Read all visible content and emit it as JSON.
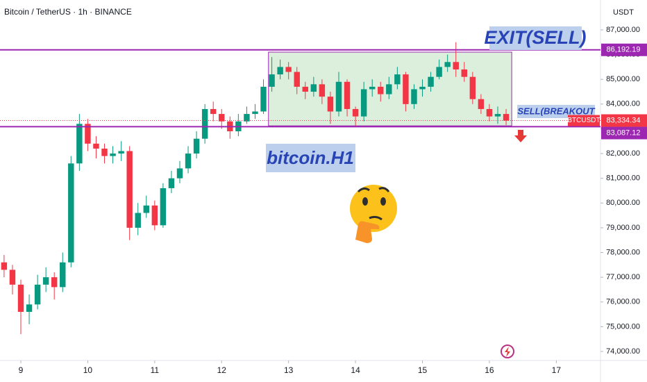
{
  "chart_data": {
    "type": "candlestick",
    "title": "Bitcoin / TetherUS · 1h · BINANCE",
    "y_axis_label": "USDT",
    "x": [
      8.75,
      8.875,
      9,
      9.125,
      9.25,
      9.375,
      9.5,
      9.625,
      9.75,
      9.875,
      10,
      10.125,
      10.25,
      10.375,
      10.5,
      10.625,
      10.75,
      10.875,
      11,
      11.125,
      11.25,
      11.375,
      11.5,
      11.625,
      11.75,
      11.875,
      12,
      12.125,
      12.25,
      12.375,
      12.5,
      12.625,
      12.75,
      12.875,
      13,
      13.125,
      13.25,
      13.375,
      13.5,
      13.625,
      13.75,
      13.875,
      14,
      14.125,
      14.25,
      14.375,
      14.5,
      14.625,
      14.75,
      14.875,
      15,
      15.125,
      15.25,
      15.375,
      15.5,
      15.625,
      15.75,
      15.875,
      16,
      16.125,
      16.25
    ],
    "open": [
      77600,
      77300,
      76700,
      75600,
      75900,
      76700,
      77000,
      76600,
      77600,
      81600,
      83200,
      82400,
      82200,
      81900,
      82000,
      82100,
      79000,
      79600,
      79900,
      79100,
      80600,
      81000,
      81400,
      82000,
      82600,
      83800,
      83600,
      83300,
      82900,
      83300,
      83600,
      83700,
      84700,
      85200,
      85500,
      85300,
      84700,
      84500,
      84800,
      84300,
      83700,
      84900,
      83800,
      83500,
      84600,
      84700,
      84400,
      84800,
      85200,
      84000,
      84600,
      84700,
      85100,
      85500,
      85700,
      85400,
      85100,
      84200,
      83800,
      83500,
      83600
    ],
    "high": [
      77900,
      77500,
      76900,
      76300,
      77100,
      77400,
      77200,
      78000,
      81900,
      83600,
      83400,
      82700,
      82400,
      82300,
      82500,
      82300,
      80000,
      80300,
      80100,
      80800,
      81300,
      81700,
      82300,
      82900,
      84000,
      84100,
      83800,
      83500,
      83600,
      83900,
      84000,
      85000,
      85900,
      85800,
      85700,
      85500,
      84900,
      85100,
      85000,
      84500,
      85300,
      85000,
      83900,
      84900,
      85000,
      84900,
      85100,
      85500,
      85300,
      84800,
      85000,
      85300,
      85800,
      86000,
      86500,
      85700,
      85300,
      84400,
      84000,
      83900,
      83800
    ],
    "low": [
      77000,
      76300,
      74700,
      75100,
      75700,
      76400,
      76100,
      76400,
      77400,
      81300,
      82100,
      81800,
      81600,
      81600,
      81700,
      78500,
      78700,
      79400,
      78900,
      79000,
      80400,
      80800,
      81200,
      81800,
      82400,
      83300,
      83000,
      82600,
      82700,
      83200,
      83400,
      83600,
      84500,
      85000,
      85000,
      84400,
      84200,
      84300,
      84000,
      83200,
      83500,
      83500,
      83100,
      83300,
      84300,
      84100,
      84200,
      84600,
      83700,
      83800,
      84300,
      84500,
      85000,
      85300,
      85100,
      84900,
      84000,
      83600,
      83300,
      83200,
      83150
    ],
    "close": [
      77300,
      76700,
      75600,
      75900,
      76700,
      77000,
      76600,
      77600,
      81600,
      83200,
      82400,
      82200,
      81900,
      82000,
      82100,
      79000,
      79600,
      79900,
      79100,
      80600,
      81000,
      81400,
      82000,
      82600,
      83800,
      83600,
      83300,
      82900,
      83300,
      83600,
      83700,
      84700,
      85200,
      85500,
      85300,
      84700,
      84500,
      84800,
      84300,
      83700,
      84900,
      83800,
      83500,
      84600,
      84700,
      84400,
      84800,
      85200,
      84000,
      84600,
      84700,
      85100,
      85500,
      85700,
      85400,
      85100,
      84200,
      83800,
      83500,
      83600,
      83330
    ],
    "up_color": "#089981",
    "down_color": "#f23645",
    "xlim": [
      8.689,
      17.66
    ],
    "xticks": [
      9,
      10,
      11,
      12,
      13,
      14,
      15,
      16,
      17
    ],
    "ylim": [
      73663,
      88207
    ],
    "yticks": [
      {
        "value": 74000,
        "label": "74,000.00"
      },
      {
        "value": 75000,
        "label": "75,000.00"
      },
      {
        "value": 76000,
        "label": "76,000.00"
      },
      {
        "value": 77000,
        "label": "77,000.00"
      },
      {
        "value": 78000,
        "label": "78,000.00"
      },
      {
        "value": 79000,
        "label": "79,000.00"
      },
      {
        "value": 80000,
        "label": "80,000.00"
      },
      {
        "value": 81000,
        "label": "81,000.00"
      },
      {
        "value": 82000,
        "label": "82,000.00"
      },
      {
        "value": 83000,
        "label": "83,000.00"
      },
      {
        "value": 84000,
        "label": "84,000.00"
      },
      {
        "value": 85000,
        "label": "85,000.00"
      },
      {
        "value": 86000,
        "label": "86,000.00"
      },
      {
        "value": 87000,
        "label": "87,000.00"
      }
    ],
    "grid": false,
    "hlines": [
      {
        "value": 86192.19,
        "label": "86,192.19",
        "color": "#9c27b0"
      },
      {
        "value": 83087.12,
        "label": "83,087.12",
        "color": "#9c27b0"
      }
    ],
    "last_price": {
      "value": 83334.34,
      "label": "83,334.34",
      "symbol": "BTCUSDT",
      "color": "#f23645"
    },
    "range_box": {
      "x": [
        12.7,
        16.334
      ],
      "y": [
        83120,
        86100
      ],
      "color": "#9c27b0"
    },
    "annotations": [
      {
        "text": "EXIT(SELL)"
      },
      {
        "text": "SELL(BREAKOUT"
      },
      {
        "text": "bitcoin.H1"
      }
    ]
  }
}
